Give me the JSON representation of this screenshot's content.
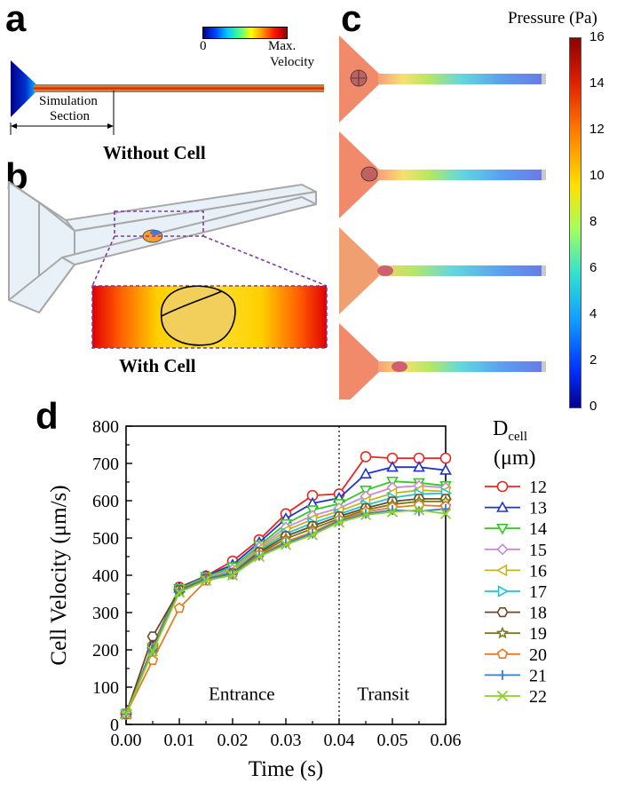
{
  "panels": {
    "a": {
      "letter": "a",
      "colorbar_min": "0",
      "colorbar_max_line1": "Max.",
      "colorbar_max_line2": "Velocity",
      "section_label_line1": "Simulation",
      "section_label_line2": "Section",
      "caption": "Without Cell"
    },
    "b": {
      "letter": "b",
      "caption": "With Cell"
    },
    "c": {
      "letter": "c",
      "colorbar_title": "Pressure (Pa)",
      "colorbar_ticks": [
        "16",
        "14",
        "12",
        "10",
        "8",
        "6",
        "4",
        "2",
        "0"
      ]
    },
    "d": {
      "letter": "d",
      "region_labels": {
        "entrance": "Entrance",
        "transit": "Transit"
      }
    }
  },
  "chart_data": {
    "type": "line",
    "xlabel": "Time (s)",
    "ylabel": "Cell Velocity (μm/s)",
    "xlim": [
      0.0,
      0.06
    ],
    "ylim": [
      0,
      800
    ],
    "x_ticks": [
      "0.00",
      "0.01",
      "0.02",
      "0.03",
      "0.04",
      "0.05",
      "0.06"
    ],
    "y_ticks": [
      "0",
      "100",
      "200",
      "300",
      "400",
      "500",
      "600",
      "700",
      "800"
    ],
    "vline_x": 0.04,
    "legend_title_main": "D",
    "legend_title_sub": "cell",
    "legend_title_unit": "(μm)",
    "legend_position": "right",
    "grid": false,
    "x": [
      0.0,
      0.005,
      0.01,
      0.015,
      0.02,
      0.025,
      0.03,
      0.035,
      0.04,
      0.045,
      0.05,
      0.055,
      0.06
    ],
    "series": [
      {
        "name": "12",
        "color": "#e8251f",
        "marker": "circle",
        "values": [
          28,
          210,
          368,
          398,
          438,
          495,
          565,
          614,
          618,
          718,
          714,
          714,
          714
        ]
      },
      {
        "name": "13",
        "color": "#1f35c8",
        "marker": "triangle",
        "values": [
          28,
          208,
          366,
          398,
          428,
          488,
          552,
          593,
          607,
          672,
          690,
          690,
          682
        ]
      },
      {
        "name": "14",
        "color": "#2ecc1f",
        "marker": "tri-down",
        "values": [
          28,
          206,
          364,
          396,
          422,
          480,
          538,
          575,
          592,
          628,
          652,
          648,
          640
        ]
      },
      {
        "name": "15",
        "color": "#c98ad6",
        "marker": "diamond",
        "values": [
          28,
          204,
          362,
          394,
          416,
          475,
          528,
          560,
          580,
          612,
          635,
          640,
          635
        ]
      },
      {
        "name": "16",
        "color": "#c8b21a",
        "marker": "tri-left",
        "values": [
          28,
          204,
          362,
          392,
          412,
          470,
          520,
          550,
          572,
          598,
          620,
          628,
          625
        ]
      },
      {
        "name": "17",
        "color": "#1fc3d6",
        "marker": "tri-right",
        "values": [
          28,
          202,
          360,
          392,
          408,
          466,
          512,
          540,
          564,
          588,
          608,
          618,
          620
        ]
      },
      {
        "name": "18",
        "color": "#6b4a2b",
        "marker": "hexagon",
        "values": [
          28,
          236,
          360,
          390,
          405,
          462,
          505,
          532,
          558,
          580,
          598,
          605,
          605
        ]
      },
      {
        "name": "19",
        "color": "#7a7a1a",
        "marker": "star",
        "values": [
          28,
          200,
          358,
          390,
          404,
          458,
          498,
          525,
          552,
          575,
          590,
          598,
          598
        ]
      },
      {
        "name": "20",
        "color": "#e87b1f",
        "marker": "pentagon",
        "values": [
          28,
          172,
          312,
          385,
          402,
          455,
          490,
          516,
          548,
          570,
          582,
          588,
          585
        ]
      },
      {
        "name": "21",
        "color": "#3a7dd6",
        "marker": "plus",
        "values": [
          28,
          198,
          356,
          388,
          402,
          452,
          486,
          512,
          545,
          565,
          575,
          572,
          578
        ]
      },
      {
        "name": "22",
        "color": "#8ccf2a",
        "marker": "x",
        "values": [
          28,
          196,
          354,
          386,
          400,
          450,
          482,
          508,
          542,
          562,
          570,
          575,
          565
        ]
      }
    ]
  }
}
